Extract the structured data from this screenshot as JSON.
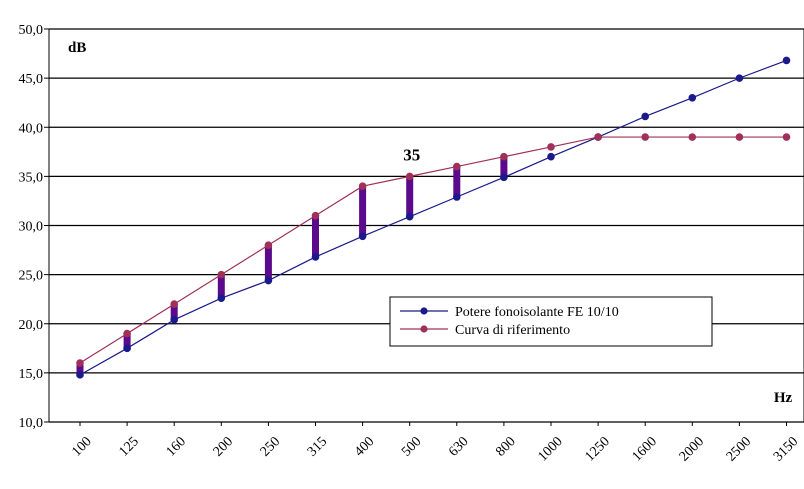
{
  "chart_data": {
    "type": "line",
    "title": "",
    "ylabel": "dB",
    "xlabel": "Hz",
    "ylim": [
      10,
      50
    ],
    "yticks": [
      "10,0",
      "15,0",
      "20,0",
      "25,0",
      "30,0",
      "35,0",
      "40,0",
      "45,0",
      "50,0"
    ],
    "categories": [
      "100",
      "125",
      "160",
      "200",
      "250",
      "315",
      "400",
      "500",
      "630",
      "800",
      "1000",
      "1250",
      "1600",
      "2000",
      "2500",
      "3150"
    ],
    "grid": "horizontal",
    "legend_position": "lower-right",
    "series": [
      {
        "name": "Potere fonoisolante FE 10/10",
        "color": "#1a1a8c",
        "values": [
          14.8,
          17.5,
          20.4,
          22.6,
          24.4,
          26.8,
          28.9,
          30.9,
          32.9,
          34.9,
          37.0,
          39.0,
          41.1,
          43.0,
          45.0,
          46.8
        ]
      },
      {
        "name": "Curva di riferimento",
        "color": "#a0305a",
        "values": [
          16.0,
          19.0,
          22.0,
          25.0,
          28.0,
          31.0,
          34.0,
          35.0,
          36.0,
          37.0,
          38.0,
          39.0,
          39.0,
          39.0,
          39.0,
          39.0
        ]
      }
    ],
    "deficiency_bars": {
      "color": "#5a0a8a",
      "category_range": [
        "100",
        "800"
      ]
    },
    "annotations": [
      {
        "text": "35",
        "at_category": "500",
        "y": 35
      }
    ]
  }
}
